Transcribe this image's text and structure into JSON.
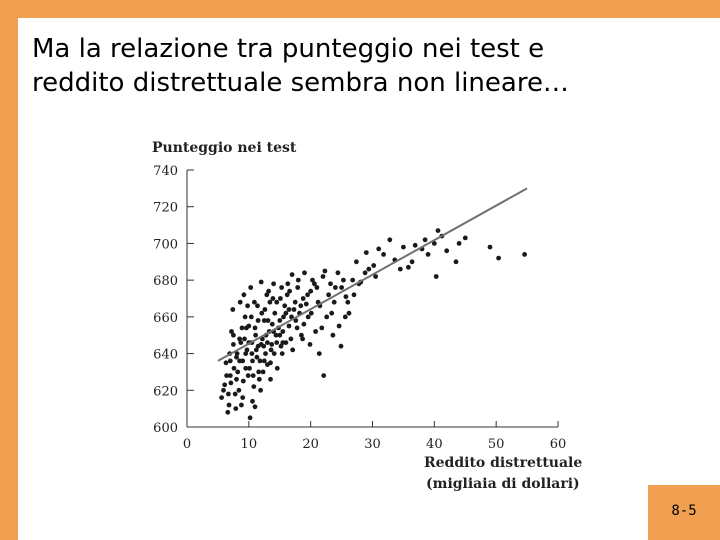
{
  "slide": {
    "title": "Ma la relazione tra punteggio nei test e\nreddito distrettuale sembra non lineare…",
    "page_number": "8-5",
    "accent_color": "#F0A050"
  },
  "chart_data": {
    "type": "scatter",
    "ylabel": "Punteggio nei test",
    "xlabel_line1": "Reddito distrettuale",
    "xlabel_line2": "(migliaia di dollari)",
    "xlim": [
      0,
      60
    ],
    "ylim": [
      600,
      740
    ],
    "xticks": [
      0,
      10,
      20,
      30,
      40,
      50,
      60
    ],
    "yticks": [
      600,
      620,
      640,
      660,
      680,
      700,
      720,
      740
    ],
    "grid": false,
    "fit_line": {
      "x": [
        5,
        55
      ],
      "y": [
        636,
        730
      ],
      "color": "#707070"
    },
    "points": [
      [
        5.6,
        616
      ],
      [
        6.1,
        623
      ],
      [
        6.6,
        608
      ],
      [
        7.0,
        628
      ],
      [
        7.5,
        645
      ],
      [
        6.3,
        635
      ],
      [
        7.8,
        618
      ],
      [
        8.2,
        630
      ],
      [
        8.8,
        612
      ],
      [
        6.9,
        640
      ],
      [
        7.2,
        652
      ],
      [
        8.0,
        638
      ],
      [
        8.5,
        648
      ],
      [
        9.1,
        625
      ],
      [
        9.5,
        640
      ],
      [
        10.2,
        605
      ],
      [
        10.8,
        622
      ],
      [
        11.0,
        611
      ],
      [
        7.4,
        664
      ],
      [
        8.6,
        668
      ],
      [
        9.4,
        660
      ],
      [
        10.0,
        655
      ],
      [
        10.5,
        646
      ],
      [
        11.2,
        642
      ],
      [
        11.8,
        636
      ],
      [
        12.3,
        630
      ],
      [
        12.8,
        650
      ],
      [
        13.1,
        658
      ],
      [
        13.7,
        645
      ],
      [
        14.2,
        662
      ],
      [
        14.8,
        654
      ],
      [
        15.1,
        670
      ],
      [
        15.6,
        660
      ],
      [
        16.2,
        672
      ],
      [
        16.8,
        648
      ],
      [
        17.3,
        664
      ],
      [
        17.9,
        676
      ],
      [
        18.4,
        666
      ],
      [
        18.9,
        656
      ],
      [
        19.5,
        672
      ],
      [
        20.1,
        662
      ],
      [
        20.6,
        678
      ],
      [
        21.2,
        668
      ],
      [
        21.8,
        654
      ],
      [
        22.3,
        685
      ],
      [
        22.9,
        672
      ],
      [
        23.4,
        662
      ],
      [
        24.0,
        676
      ],
      [
        24.6,
        655
      ],
      [
        25.3,
        680
      ],
      [
        9.2,
        672
      ],
      [
        9.8,
        666
      ],
      [
        10.3,
        676
      ],
      [
        10.9,
        668
      ],
      [
        11.5,
        658
      ],
      [
        12.0,
        679
      ],
      [
        12.6,
        664
      ],
      [
        13.2,
        674
      ],
      [
        13.9,
        670
      ],
      [
        14.5,
        668
      ],
      [
        15.0,
        650
      ],
      [
        15.4,
        640
      ],
      [
        16.0,
        662
      ],
      [
        16.5,
        655
      ],
      [
        17.1,
        642
      ],
      [
        17.6,
        658
      ],
      [
        18.2,
        662
      ],
      [
        18.7,
        648
      ],
      [
        19.3,
        667
      ],
      [
        19.9,
        645
      ],
      [
        10.1,
        632
      ],
      [
        10.7,
        628
      ],
      [
        11.3,
        638
      ],
      [
        11.9,
        620
      ],
      [
        12.4,
        644
      ],
      [
        13.0,
        634
      ],
      [
        13.5,
        626
      ],
      [
        14.1,
        640
      ],
      [
        14.6,
        632
      ],
      [
        15.2,
        644
      ],
      [
        8.9,
        654
      ],
      [
        9.3,
        648
      ],
      [
        9.7,
        642
      ],
      [
        10.6,
        636
      ],
      [
        11.1,
        650
      ],
      [
        11.6,
        630
      ],
      [
        12.2,
        648
      ],
      [
        12.7,
        640
      ],
      [
        13.3,
        652
      ],
      [
        13.8,
        656
      ],
      [
        16.3,
        678
      ],
      [
        17.0,
        683
      ],
      [
        18.0,
        680
      ],
      [
        19.0,
        684
      ],
      [
        20.3,
        680
      ],
      [
        21.0,
        676
      ],
      [
        22.0,
        682
      ],
      [
        23.2,
        678
      ],
      [
        24.4,
        684
      ],
      [
        25.7,
        671
      ],
      [
        26.0,
        668
      ],
      [
        26.8,
        680
      ],
      [
        27.4,
        690
      ],
      [
        28.1,
        679
      ],
      [
        29.0,
        695
      ],
      [
        30.2,
        688
      ],
      [
        31.0,
        697
      ],
      [
        32.8,
        702
      ],
      [
        33.6,
        691
      ],
      [
        35.0,
        698
      ],
      [
        35.8,
        687
      ],
      [
        36.4,
        690
      ],
      [
        38.0,
        697
      ],
      [
        40.0,
        700
      ],
      [
        40.6,
        707
      ],
      [
        41.2,
        704
      ],
      [
        43.5,
        690
      ],
      [
        40.3,
        682
      ],
      [
        44.0,
        700
      ],
      [
        49.0,
        698
      ],
      [
        50.4,
        692
      ],
      [
        54.6,
        694
      ],
      [
        38.5,
        702
      ],
      [
        42.0,
        696
      ],
      [
        34.5,
        686
      ],
      [
        30.5,
        682
      ],
      [
        28.8,
        684
      ],
      [
        27.0,
        672
      ],
      [
        26.2,
        662
      ],
      [
        24.9,
        644
      ],
      [
        23.6,
        650
      ],
      [
        22.1,
        628
      ],
      [
        21.4,
        640
      ],
      [
        20.8,
        652
      ],
      [
        19.6,
        660
      ],
      [
        18.5,
        650
      ],
      [
        17.5,
        668
      ],
      [
        16.6,
        674
      ],
      [
        15.8,
        666
      ],
      [
        15.3,
        676
      ],
      [
        14.0,
        678
      ],
      [
        13.4,
        668
      ],
      [
        12.9,
        672
      ],
      [
        12.1,
        662
      ],
      [
        11.4,
        666
      ],
      [
        10.4,
        660
      ],
      [
        9.6,
        654
      ],
      [
        8.7,
        646
      ],
      [
        8.1,
        640
      ],
      [
        7.6,
        632
      ],
      [
        7.1,
        624
      ],
      [
        6.7,
        618
      ],
      [
        6.4,
        628
      ],
      [
        5.9,
        620
      ],
      [
        6.8,
        612
      ],
      [
        7.9,
        610
      ],
      [
        8.4,
        620
      ],
      [
        9.0,
        616
      ],
      [
        9.9,
        628
      ],
      [
        10.6,
        614
      ],
      [
        11.7,
        626
      ],
      [
        12.5,
        636
      ],
      [
        13.6,
        642
      ],
      [
        14.4,
        650
      ],
      [
        15.5,
        646
      ],
      [
        16.9,
        660
      ],
      [
        17.8,
        654
      ],
      [
        18.8,
        670
      ],
      [
        20.0,
        674
      ],
      [
        21.5,
        666
      ],
      [
        22.6,
        660
      ],
      [
        23.8,
        668
      ],
      [
        25.0,
        676
      ],
      [
        25.6,
        660
      ],
      [
        27.8,
        678
      ],
      [
        29.4,
        686
      ],
      [
        31.8,
        694
      ],
      [
        36.9,
        699
      ],
      [
        39.0,
        694
      ],
      [
        45.0,
        703
      ],
      [
        12.0,
        645
      ],
      [
        12.5,
        658
      ],
      [
        13.0,
        646
      ],
      [
        13.5,
        635
      ],
      [
        14.0,
        652
      ],
      [
        14.5,
        646
      ],
      [
        15.0,
        658
      ],
      [
        15.5,
        652
      ],
      [
        16.0,
        646
      ],
      [
        16.5,
        664
      ],
      [
        11.0,
        654
      ],
      [
        11.5,
        644
      ],
      [
        10.0,
        646
      ],
      [
        10.5,
        640
      ],
      [
        9.0,
        636
      ],
      [
        9.5,
        632
      ],
      [
        8.0,
        626
      ],
      [
        8.5,
        636
      ],
      [
        7.5,
        650
      ],
      [
        7.0,
        636
      ]
    ]
  }
}
